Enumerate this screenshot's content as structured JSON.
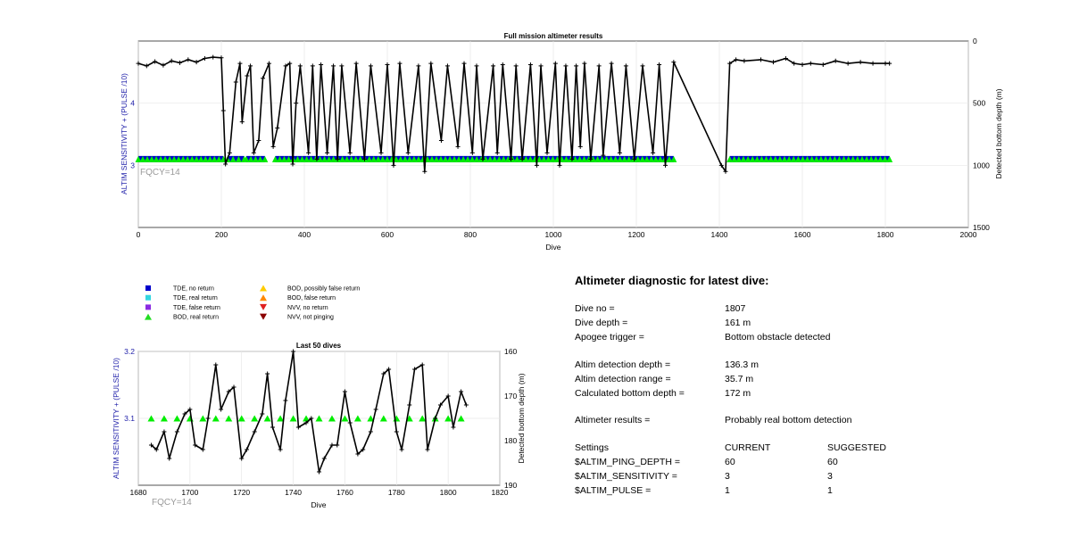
{
  "chart_data": [
    {
      "type": "line",
      "title": "Full mission altimeter results",
      "xlabel": "Dive",
      "ylabel": "ALTIM SENSITIVITY + (PULSE /10)",
      "y2label": "Detected bottom depth (m)",
      "xlim": [
        0,
        2000
      ],
      "ylim": [
        2,
        5
      ],
      "y2lim": [
        1500,
        0
      ],
      "x_ticks": [
        "0",
        "200",
        "400",
        "600",
        "800",
        "1000",
        "1200",
        "1400",
        "1600",
        "1800",
        "2000"
      ],
      "y_ticks": [
        "3",
        "4"
      ],
      "y2_ticks": [
        "0",
        "500",
        "1000",
        "1500"
      ],
      "grid": true,
      "annotation": "FQCY=14",
      "sensitivity_level": 3.1,
      "sensitivity_segments": [
        [
          0,
          205
        ],
        [
          215,
          255
        ],
        [
          260,
          305
        ],
        [
          330,
          1290
        ],
        [
          1425,
          1810
        ]
      ],
      "depth_series": {
        "name": "Detected bottom depth",
        "x": [
          0,
          20,
          40,
          60,
          80,
          100,
          120,
          140,
          160,
          180,
          200,
          205,
          210,
          220,
          235,
          245,
          250,
          262,
          270,
          278,
          290,
          300,
          315,
          325,
          335,
          355,
          365,
          372,
          380,
          390,
          410,
          420,
          430,
          440,
          455,
          470,
          480,
          490,
          510,
          525,
          545,
          560,
          585,
          600,
          615,
          630,
          650,
          675,
          690,
          705,
          730,
          745,
          770,
          785,
          805,
          815,
          830,
          855,
          865,
          878,
          898,
          910,
          925,
          945,
          960,
          970,
          985,
          1005,
          1015,
          1030,
          1045,
          1055,
          1065,
          1075,
          1090,
          1110,
          1120,
          1140,
          1160,
          1175,
          1195,
          1215,
          1240,
          1255,
          1270,
          1290,
          1405,
          1415,
          1425,
          1440,
          1460,
          1500,
          1530,
          1560,
          1580,
          1600,
          1620,
          1650,
          1680,
          1710,
          1740,
          1770,
          1800,
          1810
        ],
        "y": [
          180,
          200,
          165,
          195,
          160,
          175,
          150,
          170,
          140,
          130,
          135,
          560,
          990,
          900,
          330,
          180,
          650,
          280,
          200,
          900,
          800,
          300,
          180,
          850,
          700,
          200,
          180,
          990,
          500,
          200,
          900,
          200,
          950,
          190,
          900,
          200,
          950,
          200,
          900,
          180,
          950,
          200,
          900,
          190,
          1000,
          180,
          900,
          200,
          1050,
          180,
          800,
          200,
          850,
          180,
          900,
          200,
          950,
          200,
          900,
          190,
          950,
          200,
          950,
          190,
          1000,
          200,
          900,
          180,
          1000,
          200,
          950,
          200,
          850,
          180,
          950,
          200,
          920,
          180,
          900,
          200,
          950,
          200,
          900,
          190,
          1000,
          170,
          1000,
          1050,
          180,
          150,
          160,
          150,
          170,
          140,
          180,
          190,
          180,
          190,
          160,
          180,
          170,
          180,
          180,
          180
        ]
      }
    },
    {
      "type": "line",
      "title": "Last 50 dives",
      "xlabel": "Dive",
      "ylabel": "ALTIM SENSITIVITY + (PULSE /10)",
      "y2label": "Detected bottom depth (m)",
      "xlim": [
        1680,
        1820
      ],
      "ylim": [
        3.0,
        3.2
      ],
      "y2lim": [
        190,
        160
      ],
      "x_ticks": [
        "1680",
        "1700",
        "1720",
        "1740",
        "1760",
        "1780",
        "1800",
        "1820"
      ],
      "y_ticks": [
        "3.1",
        "3.2"
      ],
      "y2_ticks": [
        "160",
        "170",
        "180",
        "190"
      ],
      "grid": true,
      "annotation": "FQCY=14",
      "sensitivity_level": 3.1,
      "sensitivity_x": [
        1685,
        1690,
        1695,
        1700,
        1705,
        1710,
        1715,
        1720,
        1725,
        1730,
        1735,
        1740,
        1745,
        1750,
        1755,
        1760,
        1765,
        1770,
        1775,
        1780,
        1785,
        1790,
        1795,
        1800,
        1805
      ],
      "depth_series": {
        "name": "Detected bottom depth",
        "x": [
          1685,
          1687,
          1690,
          1692,
          1695,
          1698,
          1700,
          1702,
          1705,
          1707,
          1710,
          1712,
          1715,
          1717,
          1720,
          1722,
          1725,
          1728,
          1730,
          1732,
          1735,
          1737,
          1740,
          1742,
          1745,
          1747,
          1750,
          1752,
          1755,
          1757,
          1760,
          1762,
          1765,
          1767,
          1770,
          1772,
          1775,
          1777,
          1780,
          1782,
          1785,
          1787,
          1790,
          1792,
          1795,
          1797,
          1800,
          1802,
          1805,
          1807
        ],
        "y": [
          181,
          182,
          178,
          184,
          178,
          174,
          173,
          181,
          182,
          175,
          163,
          173,
          169,
          168,
          184,
          182,
          178,
          174,
          165,
          177,
          182,
          171,
          160,
          177,
          176,
          175,
          187,
          184,
          181,
          181,
          169,
          176,
          183,
          182,
          178,
          173,
          165,
          164,
          178,
          182,
          172,
          164,
          163,
          182,
          175,
          172,
          170,
          177,
          169,
          172
        ]
      }
    }
  ],
  "legend": [
    {
      "label": "TDE, no return",
      "marker": "square",
      "color": "#0000cc"
    },
    {
      "label": "TDE, real return",
      "marker": "square",
      "color": "#33d6e0"
    },
    {
      "label": "TDE, false return",
      "marker": "square",
      "color": "#8a2be2"
    },
    {
      "label": "BOD, real return",
      "marker": "triangle-up",
      "color": "#22dd22"
    },
    {
      "label": "BOD, possibly false return",
      "marker": "triangle-up",
      "color": "#ffcc00"
    },
    {
      "label": "BOD, false return",
      "marker": "triangle-up",
      "color": "#ff8800"
    },
    {
      "label": "NVV, no return",
      "marker": "triangle-down",
      "color": "#e02020"
    },
    {
      "label": "NVV, not pinging",
      "marker": "triangle-down",
      "color": "#8b0000"
    }
  ],
  "colors": {
    "axis_left": "#2222aa",
    "annotation": "#9a9a9a",
    "grid": "#e6e6e6",
    "depth_line": "#000000",
    "sensitivity_marker": "#00ee00",
    "tde_no_return": "#0000cc"
  },
  "diagnostic": {
    "title": "Altimeter diagnostic for latest dive:",
    "rows": [
      {
        "key": "Dive no =",
        "value": "1807",
        "suggested": ""
      },
      {
        "key": "Dive depth =",
        "value": "161 m",
        "suggested": ""
      },
      {
        "key": "Apogee trigger =",
        "value": "Bottom obstacle detected",
        "suggested": ""
      },
      {
        "key": "Altim detection depth =",
        "value": "136.3 m",
        "suggested": ""
      },
      {
        "key": "Altim detection range =",
        "value": "35.7 m",
        "suggested": ""
      },
      {
        "key": "Calculated bottom depth =",
        "value": "172 m",
        "suggested": ""
      },
      {
        "key": "Altimeter results =",
        "value": "Probably real bottom detection",
        "suggested": ""
      },
      {
        "key": "Settings",
        "value": "CURRENT",
        "suggested": "SUGGESTED"
      },
      {
        "key": "$ALTIM_PING_DEPTH =",
        "value": "60",
        "suggested": "60"
      },
      {
        "key": "$ALTIM_SENSITIVITY =",
        "value": "3",
        "suggested": "3"
      },
      {
        "key": "$ALTIM_PULSE =",
        "value": "1",
        "suggested": "1"
      }
    ]
  }
}
